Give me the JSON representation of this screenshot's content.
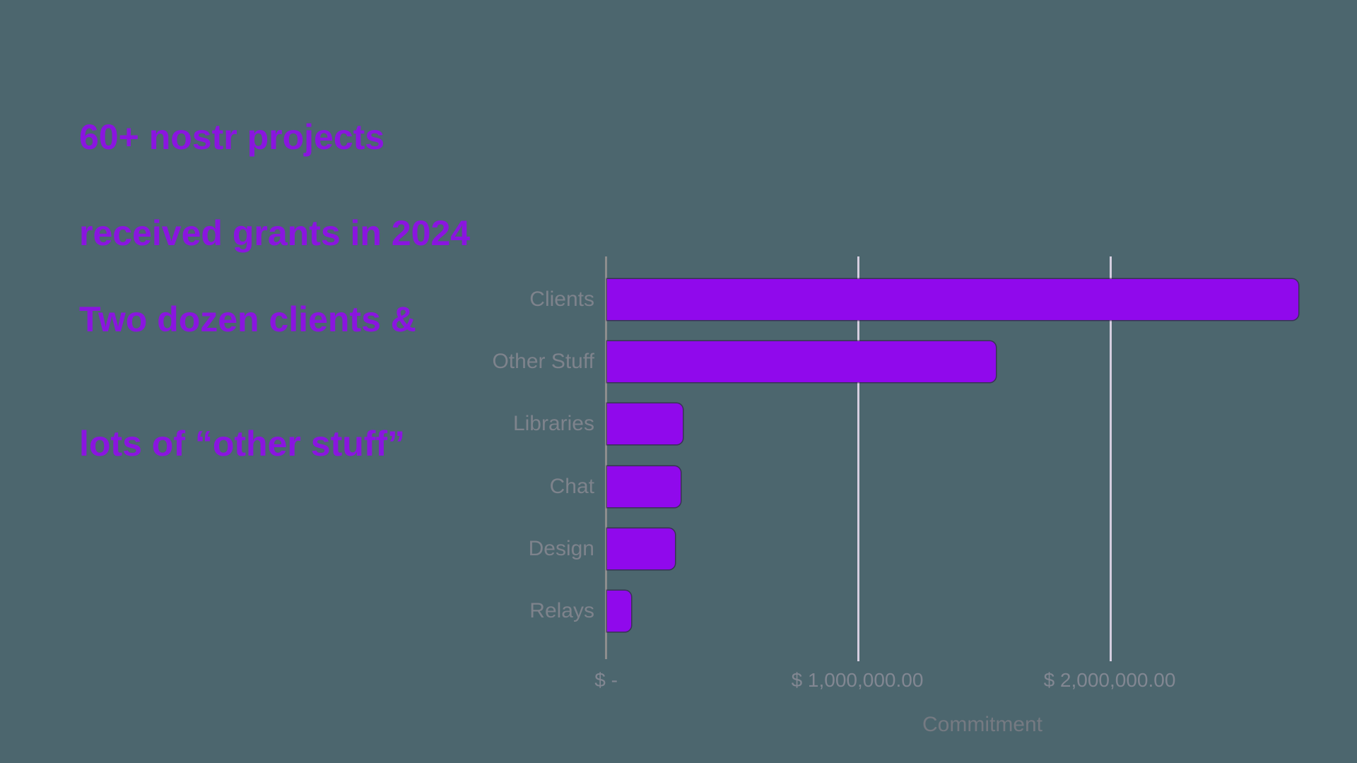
{
  "page": {
    "background_color": "#4c666e"
  },
  "heading": {
    "line1": "60+ nostr projects",
    "line2": "received grants in 2024",
    "color": "#8a15df"
  },
  "subheading": {
    "line1": "Two dozen clients &",
    "line2": "lots of “other stuff”",
    "color": "#8a15df"
  },
  "chart_data": {
    "type": "bar",
    "orientation": "horizontal",
    "title": "",
    "categories": [
      "Clients",
      "Other Stuff",
      "Libraries",
      "Chat",
      "Design",
      "Relays"
    ],
    "values": [
      2740000,
      1540000,
      300000,
      290000,
      270000,
      95000
    ],
    "xlabel": "Commitment",
    "ylabel": "",
    "xlim": [
      0,
      2980000
    ],
    "x_ticks": [
      {
        "value": 0,
        "label": "$ -"
      },
      {
        "value": 1000000,
        "label": "$ 1,000,000.00"
      },
      {
        "value": 2000000,
        "label": "$ 2,000,000.00"
      }
    ],
    "grid": true,
    "legend": false,
    "bar_color": "#9009ec",
    "gridline_color": "#d5cee0",
    "axis_line_color": "#8d8d8d",
    "category_label_color": "#7e838c",
    "tick_label_color": "#828792",
    "xlabel_color": "#757a82"
  }
}
